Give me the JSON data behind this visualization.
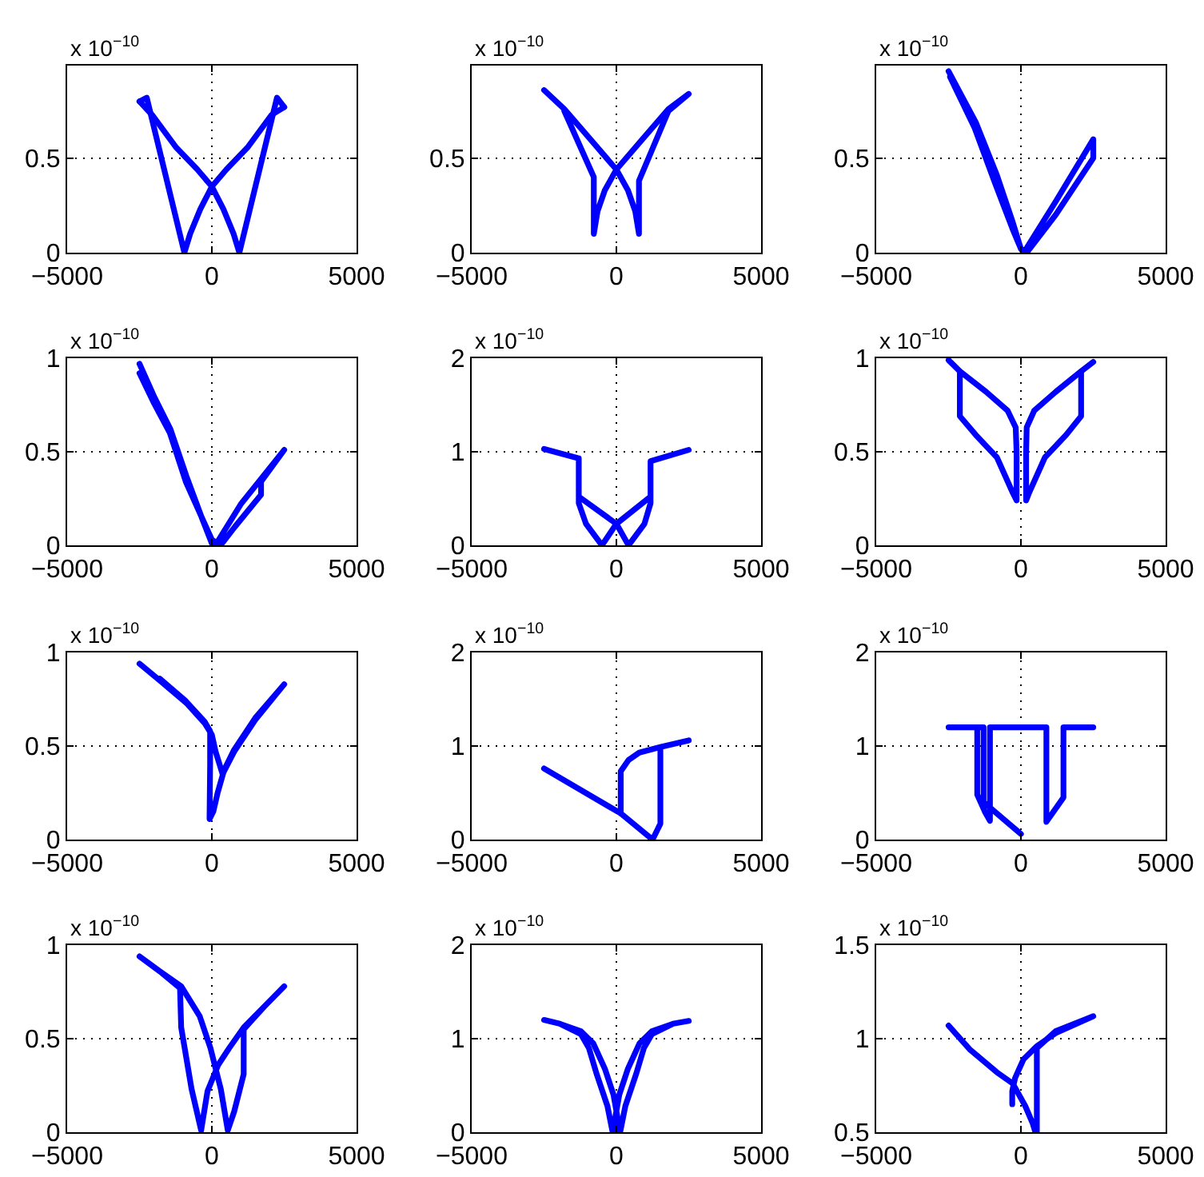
{
  "chart_data": [
    {
      "type": "line",
      "series": [
        {
          "color": "#0000ff",
          "x": [
            -2500,
            -2070,
            -1250,
            -500,
            0,
            400,
            750,
            950,
            2250,
            2500
          ],
          "values": [
            0.8,
            0.73,
            0.56,
            0.44,
            0.35,
            0.23,
            0.1,
            0,
            0.82,
            0.77
          ]
        },
        {
          "color": "#0000ff",
          "x": [
            2500,
            2070,
            1250,
            500,
            0,
            -400,
            -750,
            -950,
            -2250,
            -2500
          ],
          "values": [
            0.77,
            0.73,
            0.56,
            0.44,
            0.35,
            0.23,
            0.1,
            0,
            0.82,
            0.8
          ]
        }
      ],
      "xlim": [
        -5000,
        5000
      ],
      "xticks": [
        -5000,
        0,
        5000
      ],
      "ylim": [
        0,
        0.99
      ],
      "yticks": [
        0,
        0.5
      ],
      "grid": true,
      "annotations": [
        "x 10$^{−10}$"
      ]
    },
    {
      "type": "line",
      "series": [
        {
          "color": "#0000ff",
          "x": [
            -2500,
            -1800,
            -900,
            0,
            400,
            650,
            780,
            780,
            1800,
            2500,
            1800,
            900,
            0,
            -400,
            -650,
            -780,
            -780,
            -1800
          ],
          "values": [
            0.86,
            0.76,
            0.6,
            0.44,
            0.33,
            0.22,
            0.1,
            0.38,
            0.75,
            0.84,
            0.76,
            0.6,
            0.44,
            0.33,
            0.22,
            0.1,
            0.4,
            0.75
          ]
        }
      ],
      "xlim": [
        -5000,
        5000
      ],
      "xticks": [
        -5000,
        0,
        5000
      ],
      "ylim": [
        0,
        0.99
      ],
      "yticks": [
        0,
        0.5
      ],
      "grid": true,
      "annotations": [
        "x 10$^{−10}$"
      ]
    },
    {
      "type": "line",
      "series": [
        {
          "color": "#0000ff",
          "x": [
            -2500,
            -1560,
            -830,
            -280,
            0,
            100,
            1200,
            2500,
            2500,
            1200,
            200,
            0,
            -300,
            -900,
            -1600,
            -2450
          ],
          "values": [
            0.96,
            0.69,
            0.41,
            0.16,
            0.02,
            0,
            0.27,
            0.6,
            0.5,
            0.2,
            0,
            0.02,
            0.13,
            0.37,
            0.66,
            0.93
          ]
        }
      ],
      "xlim": [
        -5000,
        5000
      ],
      "xticks": [
        -5000,
        0,
        5000
      ],
      "ylim": [
        0,
        0.99
      ],
      "yticks": [
        0,
        0.5
      ],
      "grid": true,
      "annotations": [
        "x 10$^{−10}$"
      ]
    },
    {
      "type": "line",
      "series": [
        {
          "color": "#0000ff",
          "x": [
            -2500,
            -1980,
            -1430,
            -880,
            -330,
            0,
            200,
            1000,
            2500,
            1700,
            1700,
            800,
            300,
            0,
            -350,
            -900,
            -1450,
            -2000,
            -2500
          ],
          "values": [
            0.97,
            0.79,
            0.62,
            0.37,
            0.14,
            0.01,
            0.02,
            0.22,
            0.51,
            0.34,
            0.27,
            0.1,
            0,
            0.03,
            0.15,
            0.34,
            0.6,
            0.76,
            0.92
          ]
        }
      ],
      "xlim": [
        -5000,
        5000
      ],
      "xticks": [
        -5000,
        0,
        5000
      ],
      "ylim": [
        0,
        1
      ],
      "yticks": [
        0,
        0.5,
        1
      ],
      "grid": true,
      "annotations": [
        "x 10$^{−10}$"
      ]
    },
    {
      "type": "line",
      "series": [
        {
          "color": "#0000ff",
          "x": [
            -2500,
            -1300,
            -1300,
            0,
            420,
            970,
            1180,
            1180,
            2500,
            1180,
            1180,
            0,
            -500,
            -1050,
            -1300,
            -1300
          ],
          "values": [
            1.03,
            0.93,
            0.52,
            0.23,
            0,
            0.23,
            0.45,
            0.9,
            1.02,
            0.9,
            0.52,
            0.23,
            0,
            0.23,
            0.45,
            0.93
          ]
        }
      ],
      "xlim": [
        -5000,
        5000
      ],
      "xticks": [
        -5000,
        0,
        5000
      ],
      "ylim": [
        0,
        2
      ],
      "yticks": [
        0,
        1,
        2
      ],
      "grid": true,
      "annotations": [
        "x 10$^{−10}$"
      ]
    },
    {
      "type": "line",
      "series": [
        {
          "color": "#0000ff",
          "x": [
            -2500,
            -2110,
            -1200,
            -460,
            -180,
            -150,
            -150,
            -280,
            -830,
            -1560,
            -2110,
            -2110
          ],
          "values": [
            0.99,
            0.93,
            0.82,
            0.72,
            0.63,
            0.5,
            0.24,
            0.28,
            0.47,
            0.59,
            0.69,
            0.93
          ]
        },
        {
          "color": "#0000ff",
          "x": [
            2500,
            2080,
            1200,
            460,
            200,
            180,
            180,
            280,
            830,
            1560,
            2080,
            2080
          ],
          "values": [
            0.98,
            0.93,
            0.82,
            0.72,
            0.63,
            0.5,
            0.24,
            0.28,
            0.47,
            0.59,
            0.69,
            0.93
          ]
        }
      ],
      "xlim": [
        -5000,
        5000
      ],
      "xticks": [
        -5000,
        0,
        5000
      ],
      "ylim": [
        0,
        1
      ],
      "yticks": [
        0,
        0.5,
        1
      ],
      "grid": true,
      "annotations": [
        "x 10$^{−10}$"
      ]
    },
    {
      "type": "line",
      "series": [
        {
          "color": "#0000ff",
          "x": [
            -2500,
            -1800,
            -880,
            -240,
            0,
            130,
            370,
            770,
            1500,
            2500,
            1500,
            770,
            420,
            200,
            50,
            -80,
            -60,
            -60,
            -250,
            -900,
            -1800
          ],
          "values": [
            0.94,
            0.85,
            0.73,
            0.62,
            0.56,
            0.47,
            0.35,
            0.47,
            0.64,
            0.83,
            0.65,
            0.48,
            0.37,
            0.25,
            0.15,
            0.11,
            0.4,
            0.58,
            0.63,
            0.74,
            0.86
          ]
        }
      ],
      "xlim": [
        -5000,
        5000
      ],
      "xticks": [
        -5000,
        0,
        5000
      ],
      "ylim": [
        0,
        1
      ],
      "yticks": [
        0,
        0.5,
        1
      ],
      "grid": true,
      "annotations": [
        "x 10$^{−10}$"
      ]
    },
    {
      "type": "line",
      "series": [
        {
          "color": "#0000ff",
          "x": [
            -2500,
            150,
            1250,
            1520,
            1520,
            2500,
            1520,
            790,
            420,
            150,
            150
          ],
          "values": [
            0.76,
            0.28,
            0,
            0.17,
            0.99,
            1.06,
            0.99,
            0.93,
            0.85,
            0.73,
            0.28
          ]
        }
      ],
      "xlim": [
        -5000,
        5000
      ],
      "xticks": [
        -5000,
        0,
        5000
      ],
      "ylim": [
        0,
        2
      ],
      "yticks": [
        0,
        1,
        2
      ],
      "grid": true,
      "annotations": [
        "x 10$^{−10}$"
      ]
    },
    {
      "type": "line",
      "series": [
        {
          "color": "#0000ff",
          "x": [
            0,
            -1290,
            -1290,
            -2500,
            -1510,
            -1510,
            -1250,
            -1070,
            -1070,
            880,
            880,
            1470,
            1470,
            2500
          ],
          "values": [
            0.06,
            0.4,
            1.2,
            1.2,
            1.2,
            0.48,
            0.3,
            0.2,
            1.2,
            1.2,
            0.19,
            0.45,
            1.2,
            1.2
          ]
        }
      ],
      "xlim": [
        -5000,
        5000
      ],
      "xticks": [
        -5000,
        0,
        5000
      ],
      "ylim": [
        0,
        2
      ],
      "yticks": [
        0,
        1,
        2
      ],
      "grid": true,
      "annotations": [
        "x 10$^{−10}$"
      ]
    },
    {
      "type": "line",
      "series": [
        {
          "color": "#0000ff",
          "x": [
            -2500,
            -1800,
            -1060,
            -420,
            -50,
            130,
            310,
            550,
            770,
            1100,
            1100,
            1800,
            2500,
            1800,
            1100,
            600,
            220,
            -150,
            -370,
            -700,
            -1060,
            -1100,
            -1800
          ],
          "values": [
            0.94,
            0.86,
            0.78,
            0.62,
            0.45,
            0.34,
            0.23,
            0.01,
            0.11,
            0.31,
            0.55,
            0.67,
            0.78,
            0.67,
            0.56,
            0.45,
            0.36,
            0.22,
            0.01,
            0.23,
            0.56,
            0.77,
            0.86
          ]
        }
      ],
      "xlim": [
        -5000,
        5000
      ],
      "xticks": [
        -5000,
        0,
        5000
      ],
      "ylim": [
        0,
        1
      ],
      "yticks": [
        0,
        0.5,
        1
      ],
      "grid": true,
      "annotations": [
        "x 10$^{−10}$"
      ]
    },
    {
      "type": "line",
      "series": [
        {
          "color": "#0000ff",
          "x": [
            -2500,
            -1960,
            -1230,
            -950,
            -680,
            -310,
            -130,
            100,
            400,
            800,
            1230,
            1960,
            2500,
            1960,
            1230,
            950,
            680,
            310,
            130,
            -100,
            -400,
            -800,
            -1230,
            -1960
          ],
          "values": [
            1.2,
            1.16,
            1.05,
            0.9,
            0.62,
            0.28,
            0,
            0.4,
            0.68,
            0.95,
            1.08,
            1.16,
            1.19,
            1.16,
            1.05,
            0.9,
            0.62,
            0.28,
            0,
            0.4,
            0.68,
            0.95,
            1.08,
            1.16
          ]
        }
      ],
      "xlim": [
        -5000,
        5000
      ],
      "xticks": [
        -5000,
        0,
        5000
      ],
      "ylim": [
        0,
        2
      ],
      "yticks": [
        0,
        1,
        2
      ],
      "grid": true,
      "annotations": [
        "x 10$^{−10}$"
      ]
    },
    {
      "type": "line",
      "series": [
        {
          "color": "#0000ff",
          "x": [
            -2500,
            -1750,
            -830,
            -280,
            150,
            400,
            500,
            550,
            550,
            1200,
            2500,
            1200,
            550,
            90,
            -200,
            -300,
            -300
          ],
          "values": [
            1.07,
            0.94,
            0.82,
            0.76,
            0.64,
            0.55,
            0.5,
            0.5,
            0.95,
            1.04,
            1.12,
            1.03,
            0.96,
            0.89,
            0.79,
            0.72,
            0.65
          ]
        }
      ],
      "xlim": [
        -5000,
        5000
      ],
      "xticks": [
        -5000,
        0,
        5000
      ],
      "ylim": [
        0.5,
        1.5
      ],
      "yticks": [
        0.5,
        1,
        1.5
      ],
      "grid": true,
      "annotations": [
        "x 10$^{−10}$"
      ]
    }
  ]
}
